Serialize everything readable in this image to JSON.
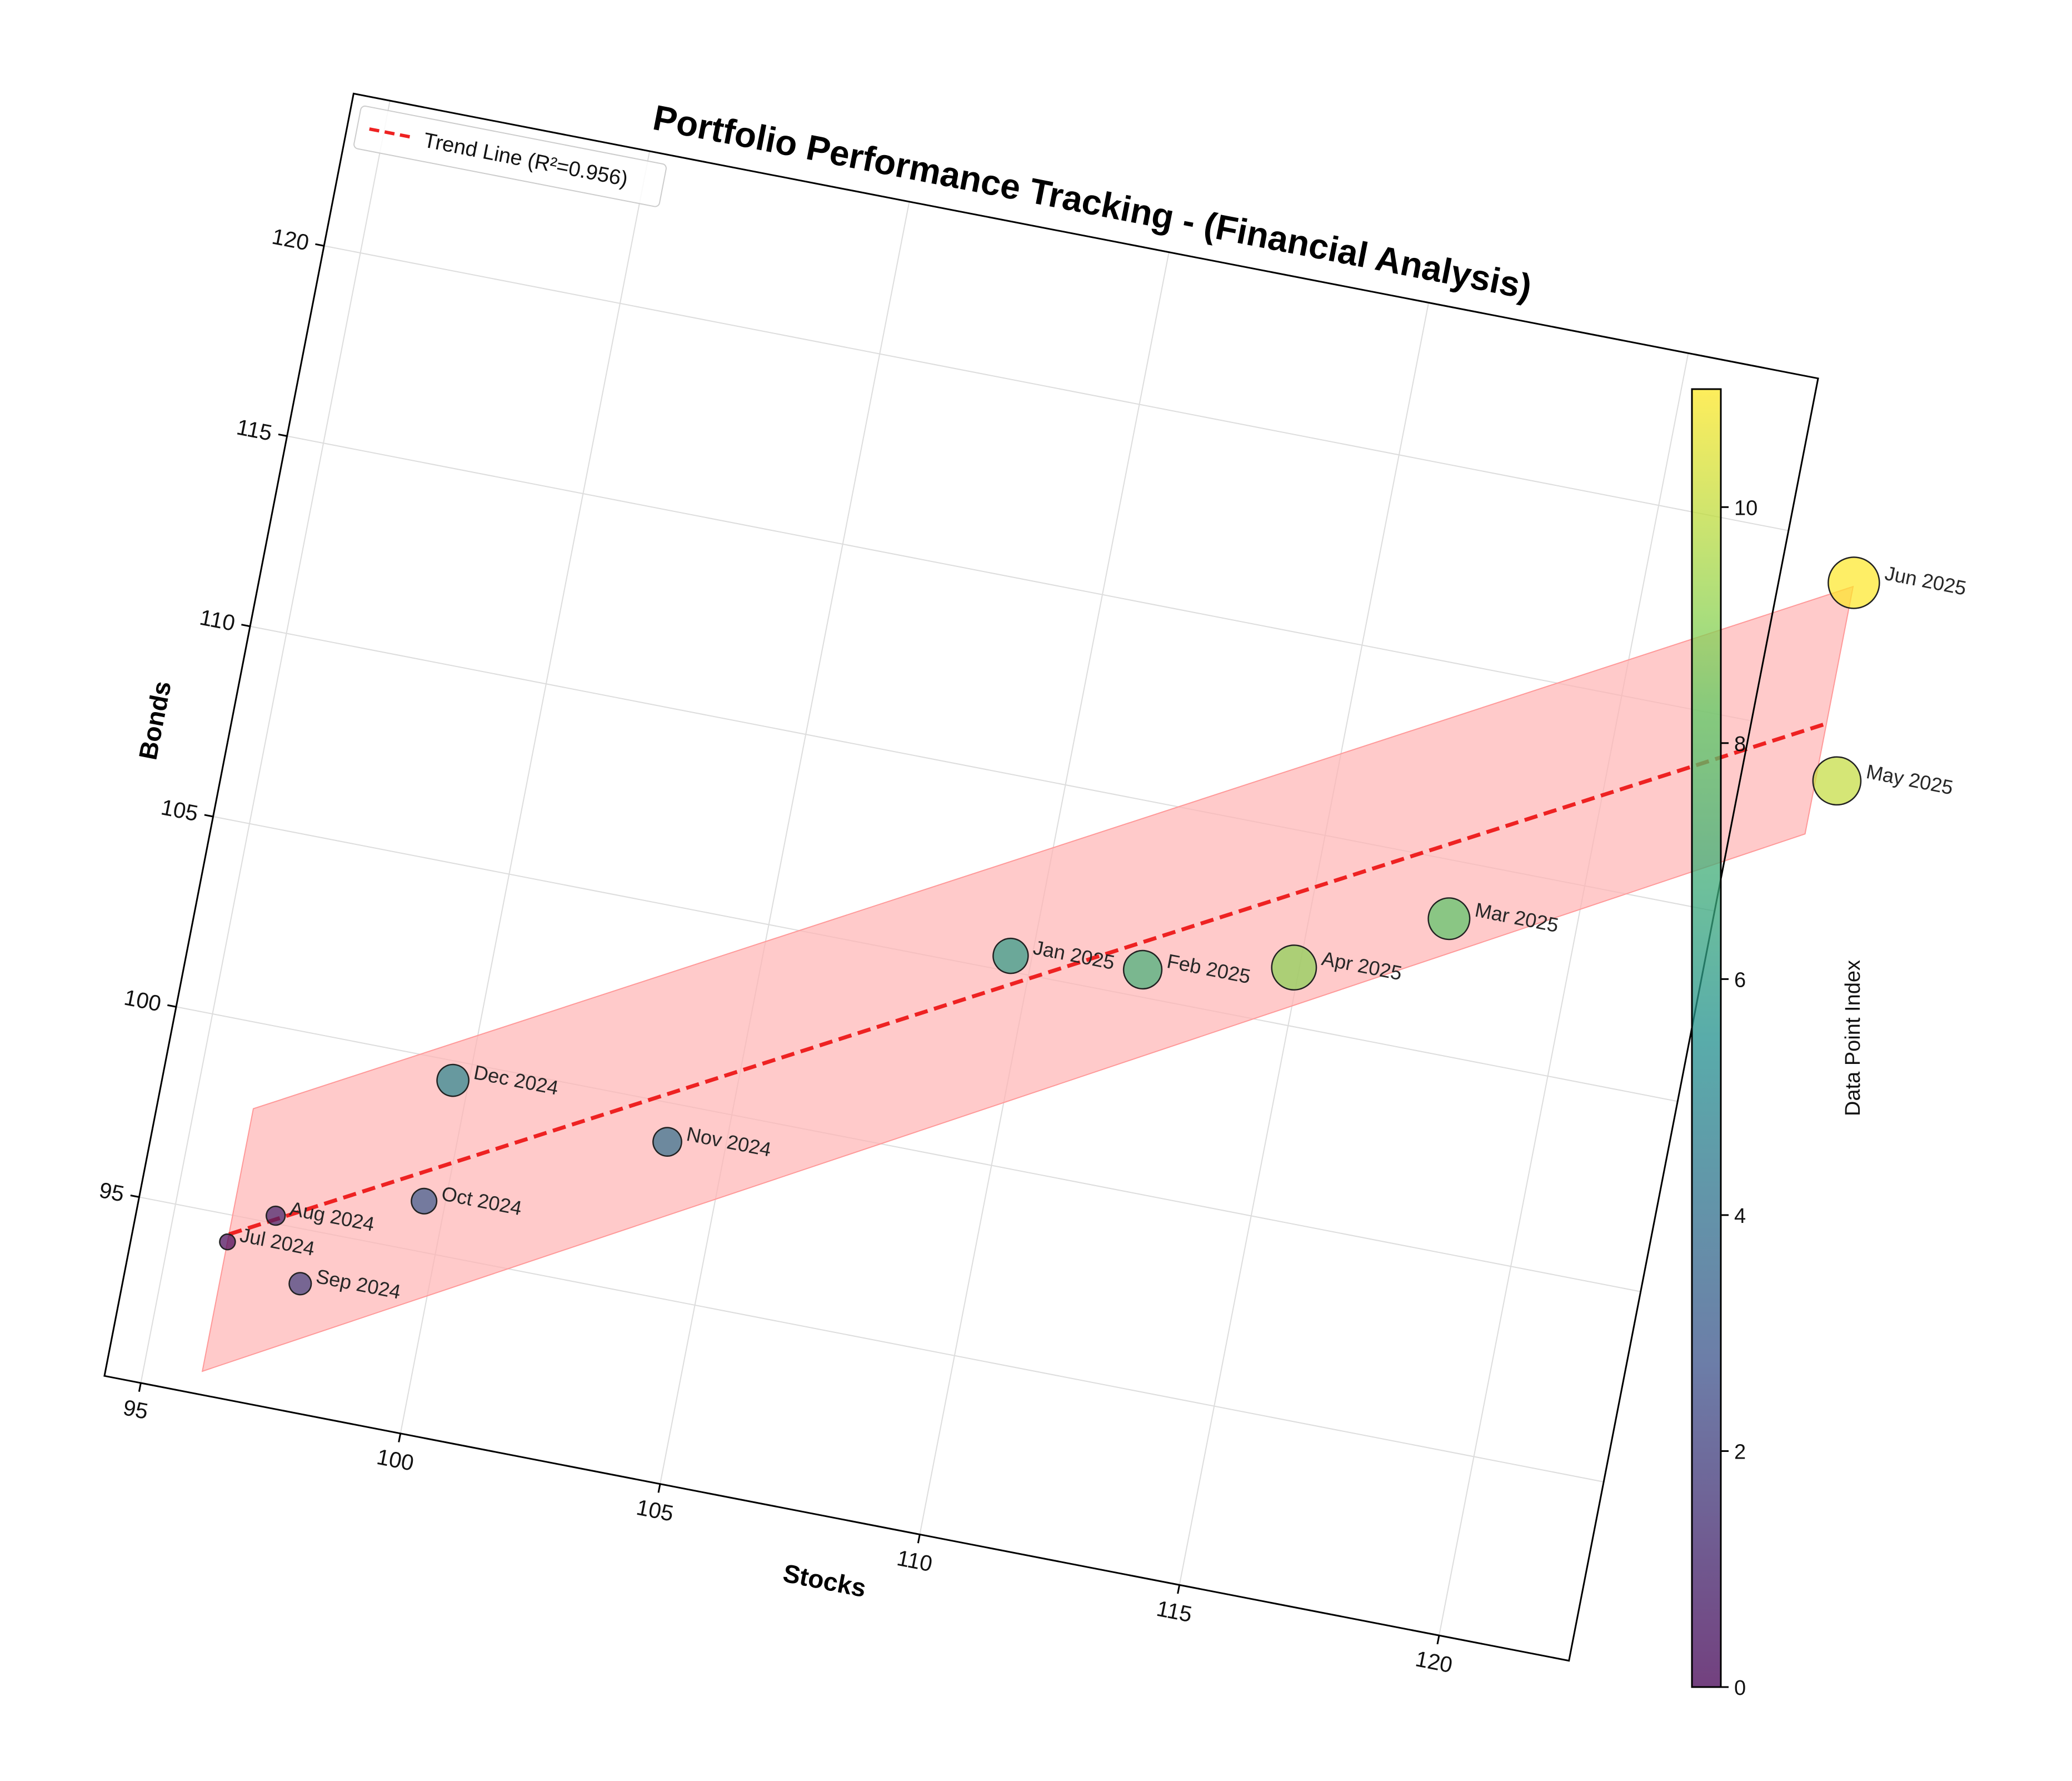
{
  "chart_data": {
    "type": "scatter",
    "title": "Portfolio Performance Tracking - (Financial Analysis)",
    "xlabel": "Stocks",
    "ylabel": "Bonds",
    "xlim": [
      94.3,
      122.5
    ],
    "ylim": [
      90.3,
      124.0
    ],
    "xticks": [
      95,
      100,
      105,
      110,
      115,
      120
    ],
    "yticks": [
      95,
      100,
      105,
      110,
      115,
      120
    ],
    "grid": true,
    "rotation_deg": 11,
    "points": [
      {
        "label": "Jul 2024",
        "x": 96.1,
        "y": 94.3,
        "index": 0
      },
      {
        "label": "Aug 2024",
        "x": 96.9,
        "y": 95.2,
        "index": 1
      },
      {
        "label": "Sep 2024",
        "x": 97.6,
        "y": 93.6,
        "index": 2
      },
      {
        "label": "Oct 2024",
        "x": 99.6,
        "y": 96.3,
        "index": 3
      },
      {
        "label": "Nov 2024",
        "x": 103.9,
        "y": 99.0,
        "index": 4
      },
      {
        "label": "Dec 2024",
        "x": 99.7,
        "y": 99.5,
        "index": 5
      },
      {
        "label": "Jan 2025",
        "x": 109.6,
        "y": 105.4,
        "index": 6
      },
      {
        "label": "Feb 2025",
        "x": 112.1,
        "y": 105.7,
        "index": 7
      },
      {
        "label": "Mar 2025",
        "x": 117.6,
        "y": 108.5,
        "index": 8
      },
      {
        "label": "Apr 2025",
        "x": 114.9,
        "y": 106.5,
        "index": 9
      },
      {
        "label": "May 2025",
        "x": 124.3,
        "y": 113.9,
        "index": 10
      },
      {
        "label": "Jun 2025",
        "x": 123.9,
        "y": 119.0,
        "index": 11
      }
    ],
    "trend_line": {
      "label": "Trend Line (R²=0.956)",
      "x_start": 96.1,
      "y_start": 94.5,
      "x_end": 123.9,
      "y_end": 115.3,
      "color": "#ee2222"
    },
    "confidence_band": {
      "color": "#ffb3b3",
      "lower_start": 90.9,
      "upper_start": 97.8,
      "lower_end": 112.4,
      "upper_end": 118.9
    },
    "legend": {
      "position": "top-left",
      "entries": [
        "Trend Line (R²=0.956)"
      ]
    },
    "colorbar": {
      "label": "Data Point Index",
      "min": 0,
      "max": 11,
      "ticks": [
        0,
        2,
        4,
        6,
        8,
        10
      ],
      "colormap": [
        "#440154",
        "#3b528b",
        "#21908d",
        "#5dc963",
        "#fde725"
      ]
    }
  }
}
